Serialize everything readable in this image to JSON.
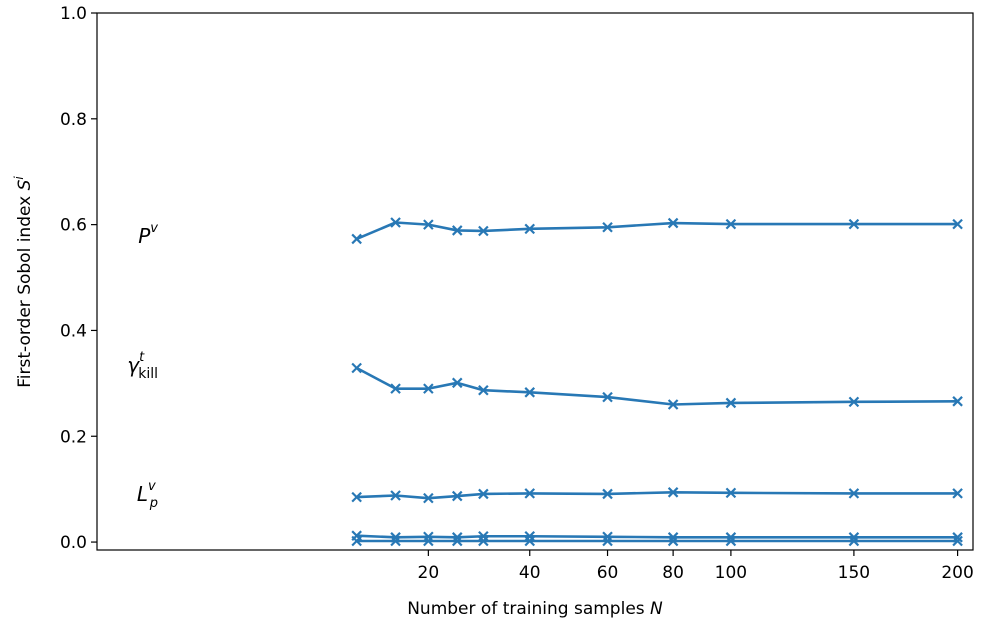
{
  "chart_data": {
    "type": "line",
    "xlabel": "Number of training samples",
    "xlabel_var": "N",
    "ylabel": "First-order Sobol index",
    "ylabel_var": "S",
    "ylabel_sup": "i",
    "x_ticks": [
      20,
      40,
      60,
      80,
      100,
      150,
      200
    ],
    "y_ticks": [
      "0.0",
      "0.2",
      "0.4",
      "0.6",
      "0.8",
      "1.0"
    ],
    "y_tick_values": [
      0.0,
      0.2,
      0.4,
      0.6,
      0.8,
      1.0
    ],
    "ylim": [
      -0.015,
      1.0
    ],
    "x_scale": "sqrt",
    "color": "#2878b5",
    "grid": false,
    "x": [
      10,
      15,
      20,
      25,
      30,
      40,
      60,
      80,
      100,
      150,
      200
    ],
    "series": [
      {
        "labeled": true,
        "label_main": "P",
        "label_sup": "v",
        "label_sub": "",
        "label_sub_upright": "",
        "values": [
          0.573,
          0.604,
          0.6,
          0.589,
          0.588,
          0.592,
          0.595,
          0.603,
          0.601,
          0.601,
          0.601
        ]
      },
      {
        "labeled": true,
        "label_main": "γ",
        "label_sup": "t",
        "label_sub": "",
        "label_sub_upright": "kill",
        "values": [
          0.329,
          0.29,
          0.29,
          0.301,
          0.287,
          0.283,
          0.274,
          0.26,
          0.263,
          0.265,
          0.266
        ]
      },
      {
        "labeled": true,
        "label_main": "L",
        "label_sup": "v",
        "label_sub": "p",
        "label_sub_upright": "",
        "values": [
          0.085,
          0.088,
          0.083,
          0.087,
          0.091,
          0.092,
          0.091,
          0.094,
          0.093,
          0.092,
          0.092
        ]
      },
      {
        "labeled": false,
        "values": [
          0.012,
          0.009,
          0.01,
          0.009,
          0.011,
          0.011,
          0.01,
          0.009,
          0.009,
          0.009,
          0.009
        ]
      },
      {
        "labeled": false,
        "values": [
          0.002,
          0.002,
          0.002,
          0.002,
          0.002,
          0.002,
          0.002,
          0.002,
          0.002,
          0.002,
          0.002
        ]
      }
    ]
  }
}
